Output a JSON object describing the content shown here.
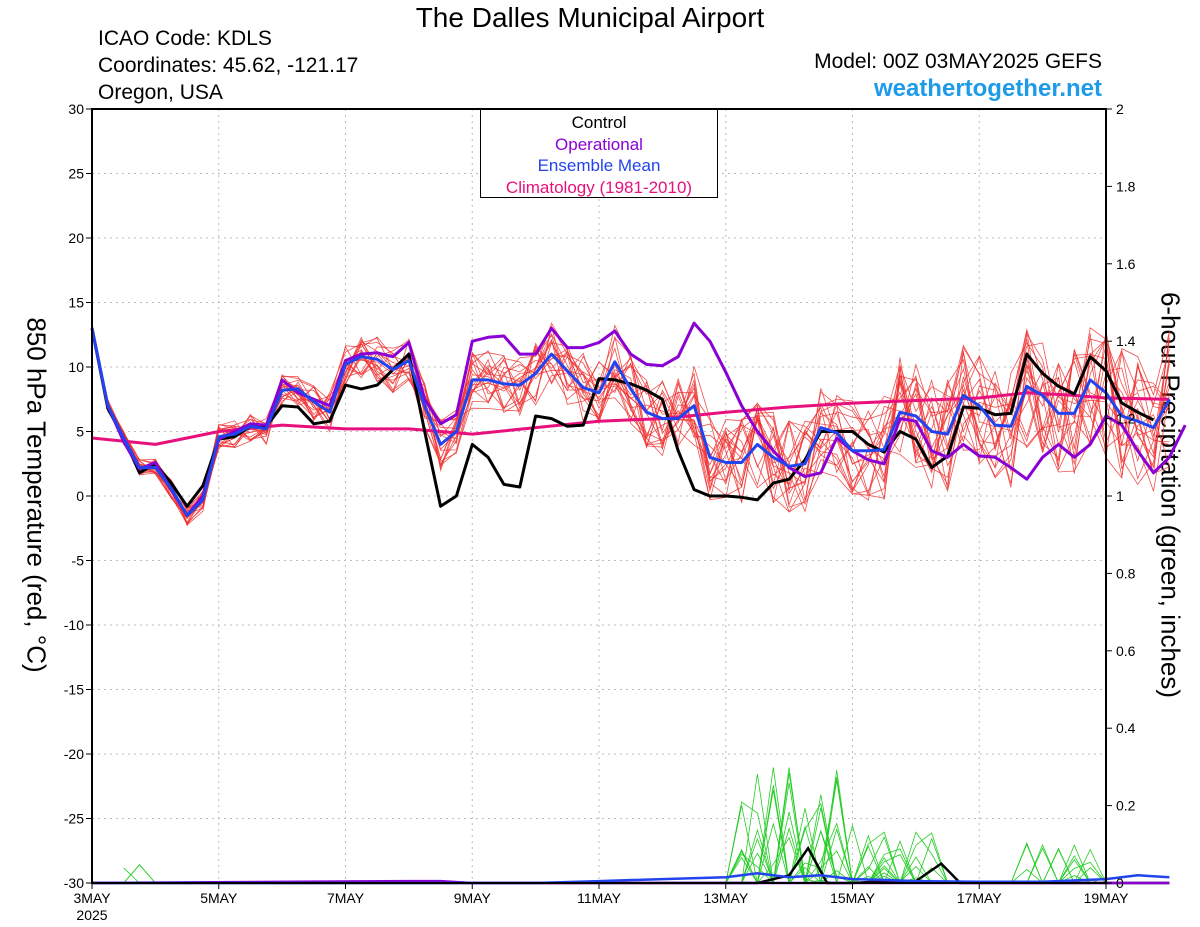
{
  "header": {
    "title": "The Dalles Municipal Airport",
    "icao": "ICAO Code: KDLS",
    "coords": "Coordinates: 45.62, -121.17",
    "region": "Oregon, USA",
    "model": "Model: 00Z 03MAY2025 GEFS",
    "site": "weathertogether.net"
  },
  "chart_data": {
    "type": "line",
    "ylabel": "850 hPa Temperature (red, °C)",
    "y2label": "6-hour Precipitation (green, inches)",
    "ylim": [
      -30,
      30
    ],
    "y2lim": [
      0,
      2
    ],
    "yticks": [
      "30",
      "25",
      "20",
      "15",
      "10",
      "5",
      "0",
      "-5",
      "-10",
      "-15",
      "-20",
      "-25",
      "-30"
    ],
    "y2ticks": [
      "2",
      "1.8",
      "1.6",
      "1.4",
      "1.2",
      "1",
      "0.8",
      "0.6",
      "0.4",
      "0.2",
      "0"
    ],
    "xticks": [
      {
        "label": "3MAY",
        "day": 0,
        "sub": "2025"
      },
      {
        "label": "5MAY",
        "day": 2
      },
      {
        "label": "7MAY",
        "day": 4
      },
      {
        "label": "9MAY",
        "day": 6
      },
      {
        "label": "11MAY",
        "day": 8
      },
      {
        "label": "13MAY",
        "day": 10
      },
      {
        "label": "15MAY",
        "day": 12
      },
      {
        "label": "17MAY",
        "day": 14
      },
      {
        "label": "19MAY",
        "day": 16
      }
    ],
    "grid": true,
    "legend": {
      "placement": "top-center",
      "entries": [
        {
          "name": "Control",
          "color": "#000000"
        },
        {
          "name": "Operational",
          "color": "#8a00d4"
        },
        {
          "name": "Ensemble Mean",
          "color": "#2244ee"
        },
        {
          "name": "Climatology (1981-2010)",
          "color": "#e8107c"
        }
      ]
    },
    "colors": {
      "control": "#000000",
      "operational": "#8a00d4",
      "mean": "#2244ee",
      "climatology": "#e8107c",
      "members": "#f03030",
      "precip_members": "#22cc22"
    },
    "series": [
      {
        "key": "control",
        "values": [
          [
            0,
            13
          ],
          [
            0.25,
            6.8
          ],
          [
            0.5,
            4.5
          ],
          [
            0.75,
            1.8
          ],
          [
            1,
            2.5
          ],
          [
            1.25,
            1
          ],
          [
            1.5,
            -0.8
          ],
          [
            1.75,
            0.8
          ],
          [
            2,
            4.4
          ],
          [
            2.25,
            4.6
          ],
          [
            2.5,
            5.4
          ],
          [
            2.75,
            5.4
          ],
          [
            3,
            7
          ],
          [
            3.25,
            6.9
          ],
          [
            3.5,
            5.6
          ],
          [
            3.75,
            5.8
          ],
          [
            4,
            8.6
          ],
          [
            4.25,
            8.3
          ],
          [
            4.5,
            8.6
          ],
          [
            4.75,
            9.8
          ],
          [
            5,
            11
          ],
          [
            5.25,
            5
          ],
          [
            5.5,
            -0.8
          ],
          [
            5.75,
            0
          ],
          [
            6,
            4
          ],
          [
            6.25,
            3
          ],
          [
            6.5,
            0.9
          ],
          [
            6.75,
            0.7
          ],
          [
            7,
            6.2
          ],
          [
            7.25,
            6
          ],
          [
            7.5,
            5.4
          ],
          [
            7.75,
            5.5
          ],
          [
            8,
            9.1
          ],
          [
            8.25,
            9
          ],
          [
            8.5,
            8.7
          ],
          [
            8.75,
            8.2
          ],
          [
            9,
            7.5
          ],
          [
            9.25,
            3.5
          ],
          [
            9.5,
            0.5
          ],
          [
            9.75,
            0
          ],
          [
            10,
            0
          ],
          [
            10.25,
            -0.1
          ],
          [
            10.5,
            -0.3
          ],
          [
            10.75,
            1
          ],
          [
            11,
            1.3
          ],
          [
            11.25,
            2.8
          ],
          [
            11.5,
            5
          ],
          [
            11.75,
            5
          ],
          [
            12,
            5
          ],
          [
            12.25,
            4
          ],
          [
            12.5,
            3.4
          ],
          [
            12.75,
            5
          ],
          [
            13,
            4.4
          ],
          [
            13.25,
            2.2
          ],
          [
            13.5,
            3.1
          ],
          [
            13.75,
            6.9
          ],
          [
            14,
            6.8
          ],
          [
            14.25,
            6.3
          ],
          [
            14.5,
            6.4
          ],
          [
            14.75,
            11
          ],
          [
            15,
            9.5
          ],
          [
            15.25,
            8.5
          ],
          [
            15.5,
            7.9
          ],
          [
            15.75,
            10.8
          ],
          [
            16,
            9.7
          ],
          [
            16.25,
            7.2
          ],
          [
            16.5,
            6.5
          ],
          [
            16.75,
            5.9
          ]
        ]
      },
      {
        "key": "operational",
        "values": [
          [
            0,
            13
          ],
          [
            0.25,
            7
          ],
          [
            0.5,
            4.2
          ],
          [
            0.75,
            2.1
          ],
          [
            1,
            2.6
          ],
          [
            1.25,
            0.5
          ],
          [
            1.5,
            -1.5
          ],
          [
            1.75,
            0
          ],
          [
            2,
            4.4
          ],
          [
            2.25,
            5
          ],
          [
            2.5,
            5.6
          ],
          [
            2.75,
            5.5
          ],
          [
            3,
            9
          ],
          [
            3.25,
            8
          ],
          [
            3.5,
            7.5
          ],
          [
            3.75,
            7
          ],
          [
            4,
            10.5
          ],
          [
            4.25,
            11
          ],
          [
            4.5,
            11.1
          ],
          [
            4.75,
            10.8
          ],
          [
            5,
            11.9
          ],
          [
            5.25,
            7.5
          ],
          [
            5.5,
            5.6
          ],
          [
            5.75,
            6.3
          ],
          [
            6,
            12
          ],
          [
            6.25,
            12.3
          ],
          [
            6.5,
            12.4
          ],
          [
            6.75,
            11
          ],
          [
            7,
            11
          ],
          [
            7.25,
            13
          ],
          [
            7.5,
            11.5
          ],
          [
            7.75,
            11.5
          ],
          [
            8,
            11.9
          ],
          [
            8.25,
            12.8
          ],
          [
            8.5,
            11
          ],
          [
            8.75,
            10.2
          ],
          [
            9,
            10.1
          ],
          [
            9.25,
            10.8
          ],
          [
            9.5,
            13.4
          ],
          [
            9.75,
            12
          ],
          [
            10,
            9.6
          ],
          [
            10.25,
            7
          ],
          [
            10.5,
            5
          ],
          [
            10.75,
            3.5
          ],
          [
            11,
            2.2
          ],
          [
            11.25,
            1.5
          ],
          [
            11.5,
            1.8
          ],
          [
            11.75,
            4.5
          ],
          [
            12,
            3.5
          ],
          [
            12.25,
            2.8
          ],
          [
            12.5,
            2.5
          ],
          [
            12.75,
            6
          ],
          [
            13,
            5.8
          ],
          [
            13.25,
            3.5
          ],
          [
            13.5,
            3
          ],
          [
            13.75,
            4
          ],
          [
            14,
            3.1
          ],
          [
            14.25,
            3
          ],
          [
            14.5,
            2.2
          ],
          [
            14.75,
            1.3
          ],
          [
            15,
            3
          ],
          [
            15.25,
            4
          ],
          [
            15.5,
            3
          ],
          [
            15.75,
            4
          ],
          [
            16,
            6.2
          ],
          [
            16.25,
            5.5
          ],
          [
            16.5,
            3.5
          ],
          [
            16.75,
            1.8
          ],
          [
            17,
            3
          ],
          [
            17.25,
            5.5
          ]
        ]
      },
      {
        "key": "mean",
        "values": [
          [
            0,
            13
          ],
          [
            0.25,
            7
          ],
          [
            0.5,
            4.5
          ],
          [
            0.75,
            2.2
          ],
          [
            1,
            2.2
          ],
          [
            1.25,
            0.6
          ],
          [
            1.5,
            -1.5
          ],
          [
            1.75,
            -0.3
          ],
          [
            2,
            4.6
          ],
          [
            2.25,
            4.8
          ],
          [
            2.5,
            5.4
          ],
          [
            2.75,
            5.2
          ],
          [
            3,
            8.2
          ],
          [
            3.25,
            8.3
          ],
          [
            3.5,
            7.3
          ],
          [
            3.75,
            6.5
          ],
          [
            4,
            10.2
          ],
          [
            4.25,
            10.8
          ],
          [
            4.5,
            10.6
          ],
          [
            4.75,
            9.8
          ],
          [
            5,
            10.5
          ],
          [
            5.25,
            7
          ],
          [
            5.5,
            4
          ],
          [
            5.75,
            5
          ],
          [
            6,
            9
          ],
          [
            6.25,
            9
          ],
          [
            6.5,
            8.7
          ],
          [
            6.75,
            8.6
          ],
          [
            7,
            9.5
          ],
          [
            7.25,
            11
          ],
          [
            7.5,
            9.7
          ],
          [
            7.75,
            8.4
          ],
          [
            8,
            8
          ],
          [
            8.25,
            10.4
          ],
          [
            8.5,
            8.3
          ],
          [
            8.75,
            6.5
          ],
          [
            9,
            6
          ],
          [
            9.25,
            6
          ],
          [
            9.5,
            7
          ],
          [
            9.75,
            3
          ],
          [
            10,
            2.6
          ],
          [
            10.25,
            2.6
          ],
          [
            10.5,
            4
          ],
          [
            10.75,
            3
          ],
          [
            11,
            2.3
          ],
          [
            11.25,
            2.5
          ],
          [
            11.5,
            5.3
          ],
          [
            11.75,
            4.9
          ],
          [
            12,
            3.5
          ],
          [
            12.25,
            3.5
          ],
          [
            12.5,
            3.6
          ],
          [
            12.75,
            6.5
          ],
          [
            13,
            6.2
          ],
          [
            13.25,
            5
          ],
          [
            13.5,
            4.8
          ],
          [
            13.75,
            7.8
          ],
          [
            14,
            7
          ],
          [
            14.25,
            5.5
          ],
          [
            14.5,
            5.4
          ],
          [
            14.75,
            8.5
          ],
          [
            15,
            7.8
          ],
          [
            15.25,
            6.4
          ],
          [
            15.5,
            6.4
          ],
          [
            15.75,
            9
          ],
          [
            16,
            8
          ],
          [
            16.25,
            6.2
          ],
          [
            16.5,
            5.8
          ],
          [
            16.75,
            5.3
          ],
          [
            17,
            7.5
          ]
        ]
      },
      {
        "key": "climatology",
        "values": [
          [
            0,
            4.5
          ],
          [
            1,
            4
          ],
          [
            1.5,
            4.5
          ],
          [
            2,
            5
          ],
          [
            3,
            5.5
          ],
          [
            4,
            5.2
          ],
          [
            5,
            5.2
          ],
          [
            5.5,
            5
          ],
          [
            6,
            4.8
          ],
          [
            7,
            5.3
          ],
          [
            8,
            5.8
          ],
          [
            9,
            6
          ],
          [
            10,
            6.5
          ],
          [
            11,
            6.9
          ],
          [
            12,
            7.2
          ],
          [
            13,
            7.4
          ],
          [
            14,
            7.6
          ],
          [
            14.75,
            8
          ],
          [
            15.5,
            7.8
          ],
          [
            16,
            7.6
          ],
          [
            17,
            7.5
          ]
        ]
      }
    ],
    "precip_series": [
      {
        "key": "control",
        "values": [
          [
            0,
            0
          ],
          [
            10.5,
            0
          ],
          [
            11,
            0.02
          ],
          [
            11.3,
            0.09
          ],
          [
            11.6,
            0
          ],
          [
            12,
            0
          ],
          [
            12.5,
            0.005
          ],
          [
            13,
            0.005
          ],
          [
            13.4,
            0.05
          ],
          [
            13.7,
            0
          ],
          [
            17,
            0
          ]
        ]
      },
      {
        "key": "operational",
        "values": [
          [
            0,
            0
          ],
          [
            5,
            0.005
          ],
          [
            5.5,
            0.005
          ],
          [
            6,
            0
          ],
          [
            17,
            0
          ]
        ]
      },
      {
        "key": "mean",
        "values": [
          [
            0,
            0
          ],
          [
            6,
            0
          ],
          [
            7,
            0
          ],
          [
            8,
            0.005
          ],
          [
            9,
            0.01
          ],
          [
            10,
            0.015
          ],
          [
            10.5,
            0.025
          ],
          [
            11,
            0.015
          ],
          [
            11.5,
            0.02
          ],
          [
            12,
            0.01
          ],
          [
            12.5,
            0.008
          ],
          [
            13,
            0.005
          ],
          [
            14,
            0.003
          ],
          [
            15,
            0.003
          ],
          [
            16,
            0.01
          ],
          [
            16.5,
            0.02
          ],
          [
            17,
            0.015
          ]
        ]
      }
    ]
  }
}
